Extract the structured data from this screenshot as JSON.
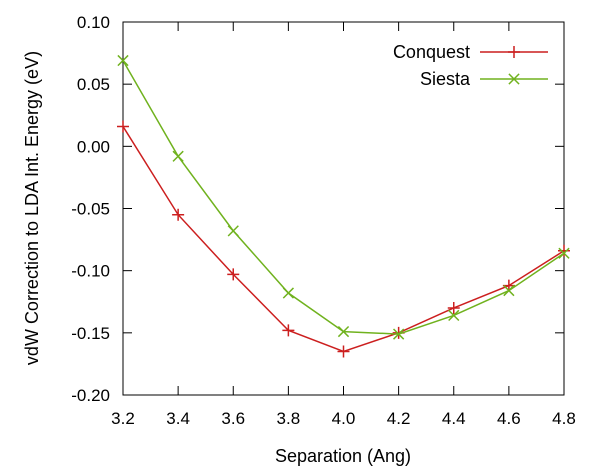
{
  "chart_data": {
    "type": "line",
    "title": "",
    "xlabel": "Separation (Ang)",
    "ylabel": "vdW Correction to LDA Int. Energy (eV)",
    "xlim": [
      3.2,
      4.8
    ],
    "ylim": [
      -0.2,
      0.1
    ],
    "xticks": [
      "3.2",
      "3.4",
      "3.6",
      "3.8",
      "4.0",
      "4.2",
      "4.4",
      "4.6",
      "4.8"
    ],
    "yticks": [
      "0.10",
      "0.05",
      "0.00",
      "-0.05",
      "-0.10",
      "-0.15",
      "-0.20"
    ],
    "grid": false,
    "legend_position": "top-right",
    "series": [
      {
        "name": "Conquest",
        "color": "#cc1f1f",
        "marker": "plus",
        "x": [
          3.2,
          3.4,
          3.6,
          3.8,
          4.0,
          4.2,
          4.4,
          4.6,
          4.8
        ],
        "y": [
          0.016,
          -0.055,
          -0.103,
          -0.148,
          -0.165,
          -0.15,
          -0.13,
          -0.112,
          -0.084
        ]
      },
      {
        "name": "Siesta",
        "color": "#70b21e",
        "marker": "cross",
        "x": [
          3.2,
          3.4,
          3.6,
          3.8,
          4.0,
          4.2,
          4.4,
          4.6,
          4.8
        ],
        "y": [
          0.069,
          -0.008,
          -0.068,
          -0.118,
          -0.149,
          -0.151,
          -0.136,
          -0.116,
          -0.086
        ]
      }
    ]
  }
}
